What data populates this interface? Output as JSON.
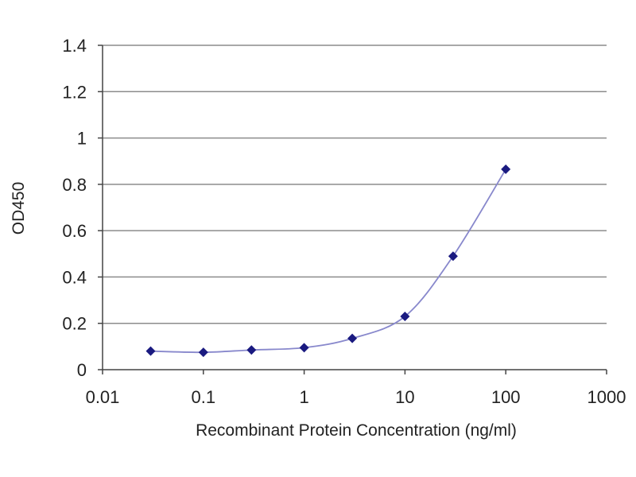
{
  "chart_data": {
    "type": "line",
    "title": "",
    "xlabel": "Recombinant Protein Concentration (ng/ml)",
    "ylabel": "OD450",
    "xscale": "log",
    "xlim": [
      0.01,
      1000
    ],
    "ylim": [
      0,
      1.4
    ],
    "xticks": [
      0.01,
      0.1,
      1,
      10,
      100,
      1000
    ],
    "xtick_labels": [
      "0.01",
      "0.1",
      "1",
      "10",
      "100",
      "1000"
    ],
    "yticks": [
      0,
      0.2,
      0.4,
      0.6,
      0.8,
      1,
      1.2,
      1.4
    ],
    "ytick_labels": [
      "0",
      "0.2",
      "0.4",
      "0.6",
      "0.8",
      "1",
      "1.2",
      "1.4"
    ],
    "grid": "horizontal",
    "legend": "none",
    "series": [
      {
        "x": [
          0.03,
          0.1,
          0.3,
          1,
          3,
          10,
          30,
          100
        ],
        "y": [
          0.08,
          0.075,
          0.085,
          0.095,
          0.135,
          0.23,
          0.49,
          0.865
        ]
      }
    ],
    "colors": {
      "line": "#8888cc",
      "marker": "#1a1a80",
      "grid": "#8c8c8c",
      "axis": "#444444"
    }
  }
}
